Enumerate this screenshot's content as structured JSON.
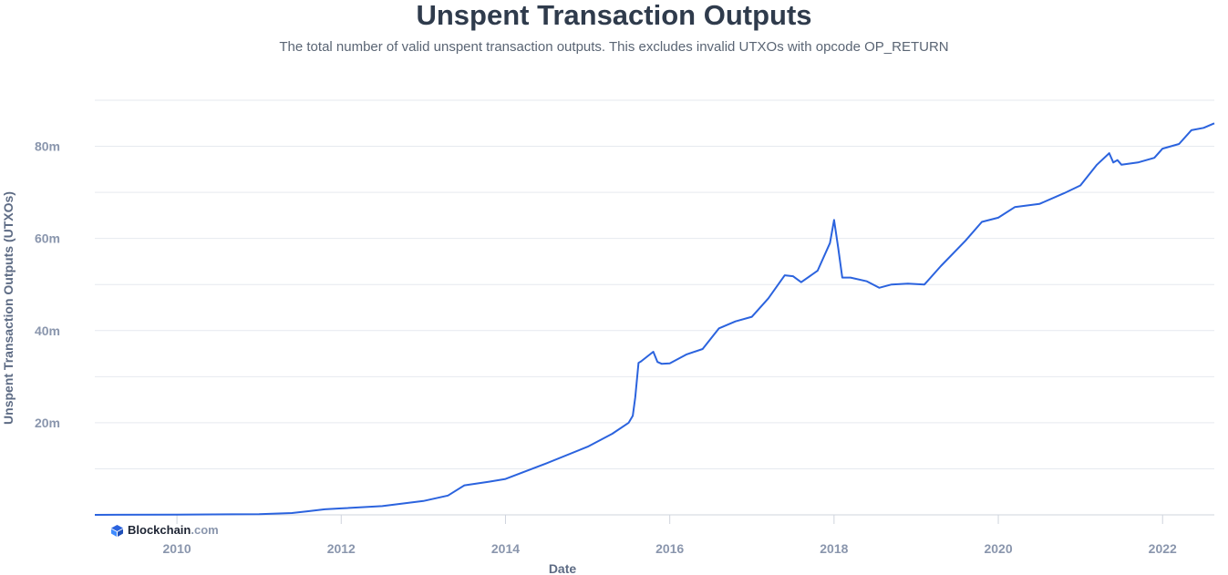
{
  "header": {
    "title": "Unspent Transaction Outputs",
    "subtitle": "The total number of valid unspent transaction outputs. This excludes invalid UTXOs with opcode OP_RETURN"
  },
  "watermark": {
    "brand": "Blockchain",
    "tld": ".com",
    "icon": "blockchain-logo-icon"
  },
  "colors": {
    "line": "#2b63de",
    "grid": "#e6e9ef",
    "text": "#2f3b4c",
    "tick": "#8a96ad"
  },
  "chart_data": {
    "type": "line",
    "title": "Unspent Transaction Outputs",
    "subtitle": "The total number of valid unspent transaction outputs. This excludes invalid UTXOs with opcode OP_RETURN",
    "xlabel": "Date",
    "ylabel": "Unspent Transaction Outputs (UTXOs)",
    "xlim": [
      2009.0,
      2022.63
    ],
    "ylim": [
      0,
      90000000
    ],
    "xticks": [
      2010,
      2012,
      2014,
      2016,
      2018,
      2020,
      2022
    ],
    "xtick_labels": [
      "2010",
      "2012",
      "2014",
      "2016",
      "2018",
      "2020",
      "2022"
    ],
    "yticks": [
      20000000,
      40000000,
      60000000,
      80000000
    ],
    "ytick_labels": [
      "20m",
      "40m",
      "60m",
      "80m"
    ],
    "grid": true,
    "legend": "none",
    "series": [
      {
        "x": [
          2009.0,
          2010.0,
          2011.0,
          2011.4,
          2011.6,
          2011.8,
          2012.0,
          2012.5,
          2013.0,
          2013.3,
          2013.5,
          2013.8,
          2014.0,
          2014.5,
          2015.0,
          2015.3,
          2015.5,
          2015.55,
          2015.58,
          2015.62,
          2015.65,
          2015.8,
          2015.85,
          2015.9,
          2016.0,
          2016.2,
          2016.4,
          2016.6,
          2016.8,
          2017.0,
          2017.2,
          2017.4,
          2017.5,
          2017.6,
          2017.8,
          2017.95,
          2018.0,
          2018.05,
          2018.1,
          2018.2,
          2018.4,
          2018.55,
          2018.7,
          2018.9,
          2019.1,
          2019.3,
          2019.6,
          2019.8,
          2020.0,
          2020.2,
          2020.5,
          2020.8,
          2021.0,
          2021.2,
          2021.35,
          2021.4,
          2021.45,
          2021.5,
          2021.7,
          2021.9,
          2022.0,
          2022.2,
          2022.35,
          2022.5,
          2022.63
        ],
        "y": [
          0,
          50000,
          150000,
          400000,
          800000,
          1200000,
          1400000,
          1900000,
          3000000,
          4200000,
          6400000,
          7200000,
          7800000,
          11200000,
          14800000,
          17600000,
          20000000,
          21500000,
          25500000,
          33000000,
          33300000,
          35400000,
          33200000,
          32800000,
          32900000,
          34800000,
          36000000,
          40500000,
          42000000,
          43000000,
          47000000,
          52000000,
          51800000,
          50500000,
          53000000,
          59000000,
          64000000,
          58000000,
          51500000,
          51500000,
          50700000,
          49300000,
          50000000,
          50200000,
          50000000,
          54000000,
          59500000,
          63600000,
          64500000,
          66800000,
          67500000,
          69800000,
          71500000,
          76000000,
          78500000,
          76500000,
          77000000,
          76000000,
          76500000,
          77500000,
          79500000,
          80500000,
          83500000,
          84000000,
          85000000
        ]
      }
    ]
  }
}
